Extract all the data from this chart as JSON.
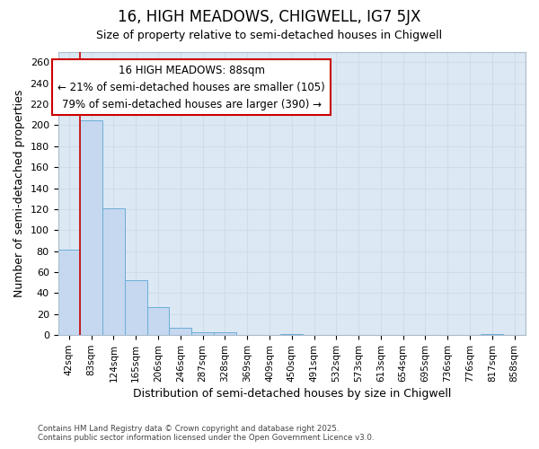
{
  "title": "16, HIGH MEADOWS, CHIGWELL, IG7 5JX",
  "subtitle": "Size of property relative to semi-detached houses in Chigwell",
  "xlabel": "Distribution of semi-detached houses by size in Chigwell",
  "ylabel": "Number of semi-detached properties",
  "footer_line1": "Contains HM Land Registry data © Crown copyright and database right 2025.",
  "footer_line2": "Contains public sector information licensed under the Open Government Licence v3.0.",
  "categories": [
    "42sqm",
    "83sqm",
    "124sqm",
    "165sqm",
    "206sqm",
    "246sqm",
    "287sqm",
    "328sqm",
    "369sqm",
    "409sqm",
    "450sqm",
    "491sqm",
    "532sqm",
    "573sqm",
    "613sqm",
    "654sqm",
    "695sqm",
    "736sqm",
    "776sqm",
    "817sqm",
    "858sqm"
  ],
  "values": [
    81,
    205,
    121,
    52,
    27,
    7,
    3,
    3,
    0,
    0,
    1,
    0,
    0,
    0,
    0,
    0,
    0,
    0,
    0,
    1,
    0
  ],
  "bar_color": "#c5d8f0",
  "bar_edge_color": "#6baed6",
  "red_line_color": "#cc0000",
  "annotation_box_color": "#ffffff",
  "annotation_box_edge": "#cc0000",
  "grid_color": "#d0dce8",
  "plot_bg_color": "#dce8f4",
  "fig_bg_color": "#ffffff",
  "ylim": [
    0,
    270
  ],
  "yticks": [
    0,
    20,
    40,
    60,
    80,
    100,
    120,
    140,
    160,
    180,
    200,
    220,
    240,
    260
  ],
  "annotation_line1": "16 HIGH MEADOWS: 88sqm",
  "annotation_line2": "← 21% of semi-detached houses are smaller (105)",
  "annotation_line3": "79% of semi-detached houses are larger (390) →"
}
